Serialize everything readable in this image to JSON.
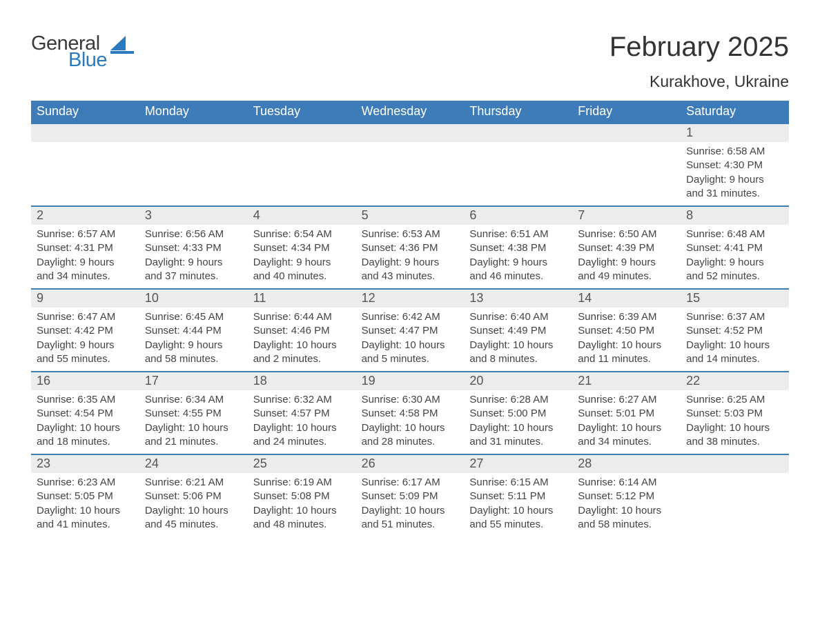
{
  "colors": {
    "header_bg": "#3d7cb8",
    "header_text": "#ffffff",
    "row_border": "#3d7cb8",
    "daynum_bg": "#ececec",
    "logo_blue": "#2a7abf",
    "text": "#333333",
    "page_bg": "#ffffff"
  },
  "logo": {
    "line1": "General",
    "line2": "Blue"
  },
  "title": "February 2025",
  "location": "Kurakhove, Ukraine",
  "day_labels": [
    "Sunday",
    "Monday",
    "Tuesday",
    "Wednesday",
    "Thursday",
    "Friday",
    "Saturday"
  ],
  "info_labels": {
    "sunrise": "Sunrise:",
    "sunset": "Sunset:",
    "daylight": "Daylight:"
  },
  "weeks": [
    [
      null,
      null,
      null,
      null,
      null,
      null,
      {
        "n": "1",
        "sunrise": "6:58 AM",
        "sunset": "4:30 PM",
        "daylight": "9 hours and 31 minutes."
      }
    ],
    [
      {
        "n": "2",
        "sunrise": "6:57 AM",
        "sunset": "4:31 PM",
        "daylight": "9 hours and 34 minutes."
      },
      {
        "n": "3",
        "sunrise": "6:56 AM",
        "sunset": "4:33 PM",
        "daylight": "9 hours and 37 minutes."
      },
      {
        "n": "4",
        "sunrise": "6:54 AM",
        "sunset": "4:34 PM",
        "daylight": "9 hours and 40 minutes."
      },
      {
        "n": "5",
        "sunrise": "6:53 AM",
        "sunset": "4:36 PM",
        "daylight": "9 hours and 43 minutes."
      },
      {
        "n": "6",
        "sunrise": "6:51 AM",
        "sunset": "4:38 PM",
        "daylight": "9 hours and 46 minutes."
      },
      {
        "n": "7",
        "sunrise": "6:50 AM",
        "sunset": "4:39 PM",
        "daylight": "9 hours and 49 minutes."
      },
      {
        "n": "8",
        "sunrise": "6:48 AM",
        "sunset": "4:41 PM",
        "daylight": "9 hours and 52 minutes."
      }
    ],
    [
      {
        "n": "9",
        "sunrise": "6:47 AM",
        "sunset": "4:42 PM",
        "daylight": "9 hours and 55 minutes."
      },
      {
        "n": "10",
        "sunrise": "6:45 AM",
        "sunset": "4:44 PM",
        "daylight": "9 hours and 58 minutes."
      },
      {
        "n": "11",
        "sunrise": "6:44 AM",
        "sunset": "4:46 PM",
        "daylight": "10 hours and 2 minutes."
      },
      {
        "n": "12",
        "sunrise": "6:42 AM",
        "sunset": "4:47 PM",
        "daylight": "10 hours and 5 minutes."
      },
      {
        "n": "13",
        "sunrise": "6:40 AM",
        "sunset": "4:49 PM",
        "daylight": "10 hours and 8 minutes."
      },
      {
        "n": "14",
        "sunrise": "6:39 AM",
        "sunset": "4:50 PM",
        "daylight": "10 hours and 11 minutes."
      },
      {
        "n": "15",
        "sunrise": "6:37 AM",
        "sunset": "4:52 PM",
        "daylight": "10 hours and 14 minutes."
      }
    ],
    [
      {
        "n": "16",
        "sunrise": "6:35 AM",
        "sunset": "4:54 PM",
        "daylight": "10 hours and 18 minutes."
      },
      {
        "n": "17",
        "sunrise": "6:34 AM",
        "sunset": "4:55 PM",
        "daylight": "10 hours and 21 minutes."
      },
      {
        "n": "18",
        "sunrise": "6:32 AM",
        "sunset": "4:57 PM",
        "daylight": "10 hours and 24 minutes."
      },
      {
        "n": "19",
        "sunrise": "6:30 AM",
        "sunset": "4:58 PM",
        "daylight": "10 hours and 28 minutes."
      },
      {
        "n": "20",
        "sunrise": "6:28 AM",
        "sunset": "5:00 PM",
        "daylight": "10 hours and 31 minutes."
      },
      {
        "n": "21",
        "sunrise": "6:27 AM",
        "sunset": "5:01 PM",
        "daylight": "10 hours and 34 minutes."
      },
      {
        "n": "22",
        "sunrise": "6:25 AM",
        "sunset": "5:03 PM",
        "daylight": "10 hours and 38 minutes."
      }
    ],
    [
      {
        "n": "23",
        "sunrise": "6:23 AM",
        "sunset": "5:05 PM",
        "daylight": "10 hours and 41 minutes."
      },
      {
        "n": "24",
        "sunrise": "6:21 AM",
        "sunset": "5:06 PM",
        "daylight": "10 hours and 45 minutes."
      },
      {
        "n": "25",
        "sunrise": "6:19 AM",
        "sunset": "5:08 PM",
        "daylight": "10 hours and 48 minutes."
      },
      {
        "n": "26",
        "sunrise": "6:17 AM",
        "sunset": "5:09 PM",
        "daylight": "10 hours and 51 minutes."
      },
      {
        "n": "27",
        "sunrise": "6:15 AM",
        "sunset": "5:11 PM",
        "daylight": "10 hours and 55 minutes."
      },
      {
        "n": "28",
        "sunrise": "6:14 AM",
        "sunset": "5:12 PM",
        "daylight": "10 hours and 58 minutes."
      },
      null
    ]
  ]
}
